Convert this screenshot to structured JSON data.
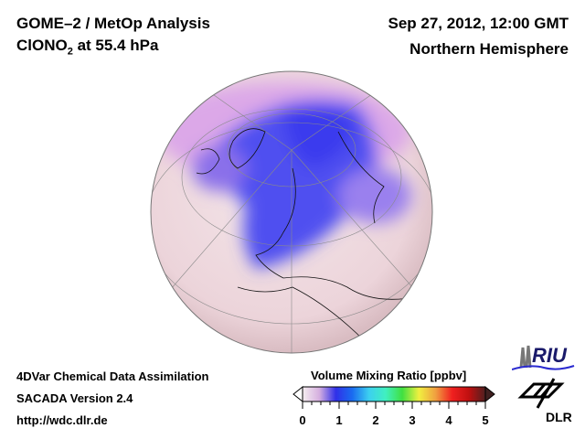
{
  "header": {
    "product": "GOME–2 / MetOp Analysis",
    "species_prefix": "ClONO",
    "species_sub": "2",
    "species_suffix": " at 55.4 hPa",
    "datetime": "Sep 27, 2012, 12:00 GMT",
    "region": "Northern Hemisphere"
  },
  "footer": {
    "line1": "4DVar Chemical Data Assimilation",
    "line2": "SACADA Version 2.4",
    "line3": "http://wdc.dlr.de"
  },
  "colorbar": {
    "title": "Volume Mixing Ratio [ppbv]",
    "ticks": [
      "0",
      "1",
      "2",
      "3",
      "4",
      "5"
    ],
    "min": 0,
    "max": 5,
    "colors": [
      "#f5eef0",
      "#d6b0e0",
      "#3030e8",
      "#1a6cf0",
      "#3cd0f0",
      "#40f0c0",
      "#40e040",
      "#f0f040",
      "#f0a040",
      "#f02020",
      "#c01010",
      "#502020"
    ]
  },
  "logos": {
    "riu": "RIU",
    "dlr": "DLR"
  }
}
